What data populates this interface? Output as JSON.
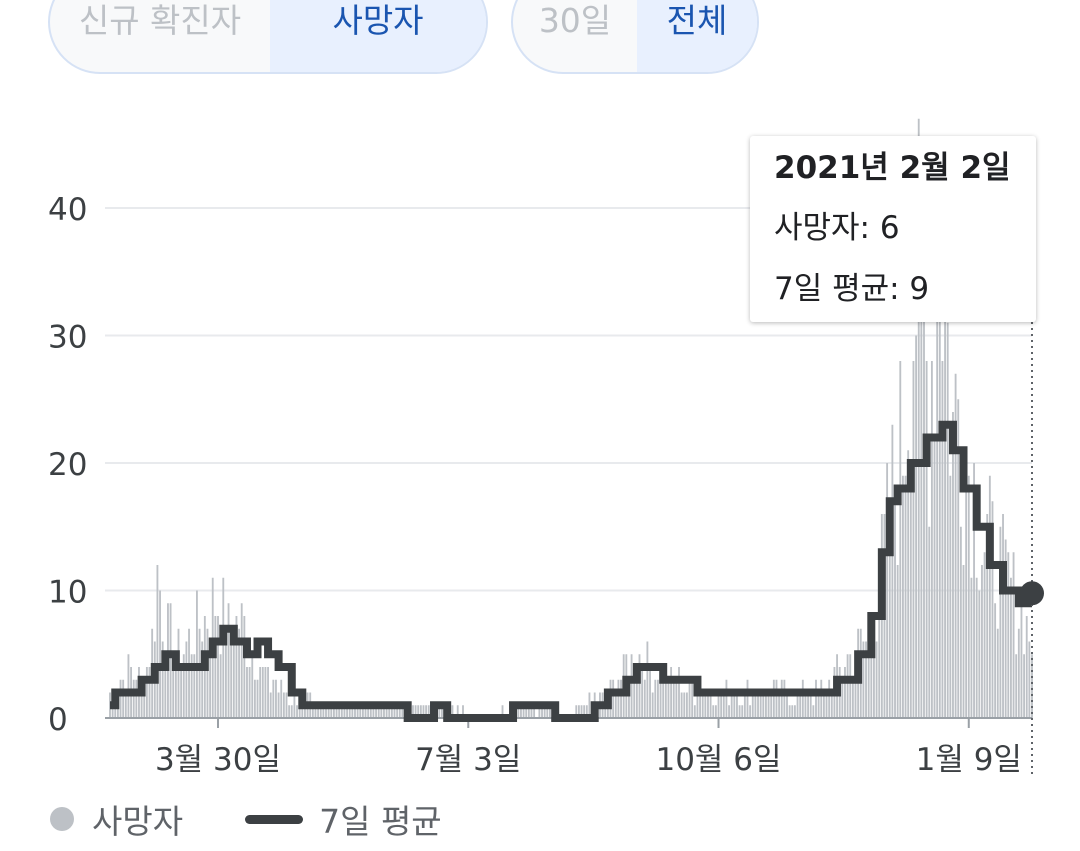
{
  "toggles": {
    "metric": {
      "options": [
        "신규 확진자",
        "사망자"
      ],
      "selected": "사망자"
    },
    "range": {
      "options": [
        "30일",
        "전체"
      ],
      "selected": "전체"
    }
  },
  "tooltip": {
    "date": "2021년 2월 2일",
    "deaths_label": "사망자: 6",
    "avg_label": "7일 평균: 9"
  },
  "legend": {
    "deaths": "사망자",
    "average": "7일 평균"
  },
  "colors": {
    "bars": "#bdc1c6",
    "average_line": "#3c4043",
    "accent": "#1a55b0",
    "gridline": "#e8eaed"
  },
  "chart_data": {
    "type": "bar",
    "y_ticks": [
      "0",
      "10",
      "20",
      "30",
      "40"
    ],
    "ylim": [
      0,
      45
    ],
    "x_ticks": [
      "3월 30일",
      "7월 3일",
      "10월 6일",
      "1월 9일"
    ],
    "x_range": [
      "2020-02-18",
      "2021-02-02"
    ],
    "series": [
      {
        "name": "사망자",
        "type": "bar",
        "points": [
          [
            "2020-02-20",
            2
          ],
          [
            "2020-02-25",
            4
          ],
          [
            "2020-03-01",
            3
          ],
          [
            "2020-03-05",
            6
          ],
          [
            "2020-03-07",
            11
          ],
          [
            "2020-03-10",
            7
          ],
          [
            "2020-03-15",
            5
          ],
          [
            "2020-03-20",
            6
          ],
          [
            "2020-03-25",
            8
          ],
          [
            "2020-03-30",
            9
          ],
          [
            "2020-04-03",
            7
          ],
          [
            "2020-04-07",
            8
          ],
          [
            "2020-04-12",
            5
          ],
          [
            "2020-04-18",
            3
          ],
          [
            "2020-04-25",
            2
          ],
          [
            "2020-05-05",
            1
          ],
          [
            "2020-05-20",
            1
          ],
          [
            "2020-06-10",
            1
          ],
          [
            "2020-06-25",
            1
          ],
          [
            "2020-07-10",
            0
          ],
          [
            "2020-07-25",
            1
          ],
          [
            "2020-08-10",
            0
          ],
          [
            "2020-08-25",
            2
          ],
          [
            "2020-09-01",
            4
          ],
          [
            "2020-09-05",
            5
          ],
          [
            "2020-09-10",
            4
          ],
          [
            "2020-09-20",
            3
          ],
          [
            "2020-10-01",
            2
          ],
          [
            "2020-10-15",
            2
          ],
          [
            "2020-11-01",
            2
          ],
          [
            "2020-11-15",
            2
          ],
          [
            "2020-11-25",
            5
          ],
          [
            "2020-12-01",
            6
          ],
          [
            "2020-12-05",
            9
          ],
          [
            "2020-12-10",
            16
          ],
          [
            "2020-12-15",
            22
          ],
          [
            "2020-12-20",
            35
          ],
          [
            "2020-12-25",
            25
          ],
          [
            "2020-12-29",
            40
          ],
          [
            "2021-01-03",
            22
          ],
          [
            "2021-01-05",
            25
          ],
          [
            "2021-01-09",
            20
          ],
          [
            "2021-01-15",
            14
          ],
          [
            "2021-01-20",
            12
          ],
          [
            "2021-01-25",
            10
          ],
          [
            "2021-01-30",
            8
          ],
          [
            "2021-02-02",
            6
          ]
        ]
      },
      {
        "name": "7일 평균",
        "type": "line",
        "points": [
          [
            "2020-02-18",
            1
          ],
          [
            "2020-02-20",
            2
          ],
          [
            "2020-02-28",
            2
          ],
          [
            "2020-03-01",
            3
          ],
          [
            "2020-03-06",
            4
          ],
          [
            "2020-03-10",
            5
          ],
          [
            "2020-03-14",
            4
          ],
          [
            "2020-03-20",
            4
          ],
          [
            "2020-03-25",
            5
          ],
          [
            "2020-03-28",
            6
          ],
          [
            "2020-04-01",
            7
          ],
          [
            "2020-04-05",
            6
          ],
          [
            "2020-04-10",
            5
          ],
          [
            "2020-04-14",
            6
          ],
          [
            "2020-04-18",
            5
          ],
          [
            "2020-04-22",
            4
          ],
          [
            "2020-04-27",
            2
          ],
          [
            "2020-05-01",
            1
          ],
          [
            "2020-06-01",
            1
          ],
          [
            "2020-06-10",
            0
          ],
          [
            "2020-06-20",
            1
          ],
          [
            "2020-06-25",
            0
          ],
          [
            "2020-07-20",
            1
          ],
          [
            "2020-08-05",
            0
          ],
          [
            "2020-08-20",
            1
          ],
          [
            "2020-08-25",
            2
          ],
          [
            "2020-09-01",
            3
          ],
          [
            "2020-09-05",
            4
          ],
          [
            "2020-09-15",
            3
          ],
          [
            "2020-09-28",
            2
          ],
          [
            "2020-10-20",
            2
          ],
          [
            "2020-11-20",
            3
          ],
          [
            "2020-11-28",
            5
          ],
          [
            "2020-12-03",
            8
          ],
          [
            "2020-12-07",
            13
          ],
          [
            "2020-12-10",
            17
          ],
          [
            "2020-12-13",
            18
          ],
          [
            "2020-12-18",
            20
          ],
          [
            "2020-12-24",
            22
          ],
          [
            "2020-12-30",
            23
          ],
          [
            "2021-01-03",
            21
          ],
          [
            "2021-01-07",
            18
          ],
          [
            "2021-01-12",
            15
          ],
          [
            "2021-01-17",
            12
          ],
          [
            "2021-01-22",
            10
          ],
          [
            "2021-01-28",
            9
          ],
          [
            "2021-02-02",
            9
          ]
        ]
      }
    ]
  }
}
